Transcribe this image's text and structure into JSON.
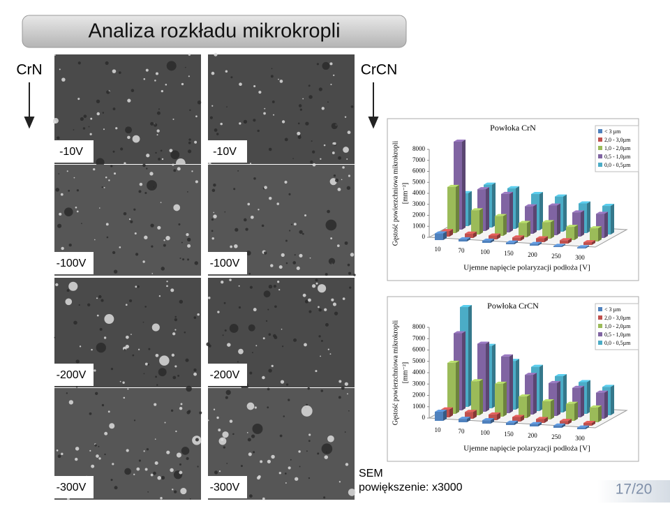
{
  "header": {
    "title": "Analiza rozkładu mikrokropli"
  },
  "columns": [
    "CrN",
    "CrCN"
  ],
  "images": [
    "-10V",
    "-10V",
    "-100V",
    "-100V",
    "-200V",
    "-200V",
    "-300V",
    "-300V"
  ],
  "footer": {
    "lines": [
      "SEM",
      "powiększenie: x3000"
    ],
    "page": "17/20"
  },
  "chart_data": [
    {
      "type": "bar3d",
      "title": "Powłoka CrN",
      "xlabel": "Ujemne napięcie polaryzacji podłoża [V]",
      "ylabel": [
        "Gęstość powierzchniowa mikrokropli",
        "[mm⁻²]"
      ],
      "categories": [
        "10",
        "70",
        "100",
        "150",
        "200",
        "250",
        "300"
      ],
      "ylim": [
        0,
        8000
      ],
      "yticks": [
        0,
        1000,
        2000,
        3000,
        4000,
        5000,
        6000,
        7000,
        8000
      ],
      "series": [
        {
          "name": "< 3 µm",
          "color": "#4f81bd",
          "values": [
            600,
            200,
            200,
            150,
            150,
            100,
            100
          ]
        },
        {
          "name": "2,0 - 3,0µm",
          "color": "#c0504d",
          "values": [
            500,
            400,
            350,
            300,
            350,
            300,
            250
          ]
        },
        {
          "name": "1,0 - 2,0µm",
          "color": "#9bbb59",
          "values": [
            4200,
            2200,
            1800,
            1300,
            1500,
            1200,
            1200
          ]
        },
        {
          "name": "0,5 - 1,0µm",
          "color": "#8064a2",
          "values": [
            8000,
            3800,
            3500,
            2500,
            2700,
            2200,
            2200
          ]
        },
        {
          "name": "0,0 - 0,5µm",
          "color": "#4bacc6",
          "values": [
            3000,
            3900,
            3700,
            3300,
            3200,
            2700,
            2600
          ]
        }
      ]
    },
    {
      "type": "bar3d",
      "title": "Powłoka CrCN",
      "xlabel": "Ujemne napięcie polaryzacji podłoża [V]",
      "ylabel": [
        "Gęstość powierzchniowa mikrokropli",
        "[mm⁻²]"
      ],
      "categories": [
        "10",
        "70",
        "100",
        "150",
        "200",
        "250",
        "300"
      ],
      "ylim": [
        0,
        8000
      ],
      "yticks": [
        0,
        1000,
        2000,
        3000,
        4000,
        5000,
        6000,
        7000,
        8000
      ],
      "series": [
        {
          "name": "< 3 µm",
          "color": "#4f81bd",
          "values": [
            800,
            300,
            300,
            200,
            200,
            200,
            150
          ]
        },
        {
          "name": "2,0 - 3,0µm",
          "color": "#c0504d",
          "values": [
            700,
            600,
            500,
            400,
            350,
            300,
            250
          ]
        },
        {
          "name": "1,0 - 2,0µm",
          "color": "#9bbb59",
          "values": [
            4500,
            3000,
            2900,
            1900,
            1600,
            1500,
            1300
          ]
        },
        {
          "name": "0,5 - 1,0µm",
          "color": "#8064a2",
          "values": [
            6800,
            6000,
            5000,
            3500,
            2900,
            2600,
            2300
          ]
        },
        {
          "name": "0,0 - 0,5µm",
          "color": "#4bacc6",
          "values": [
            8800,
            5500,
            4300,
            3900,
            3200,
            2800,
            2500
          ]
        }
      ]
    }
  ]
}
